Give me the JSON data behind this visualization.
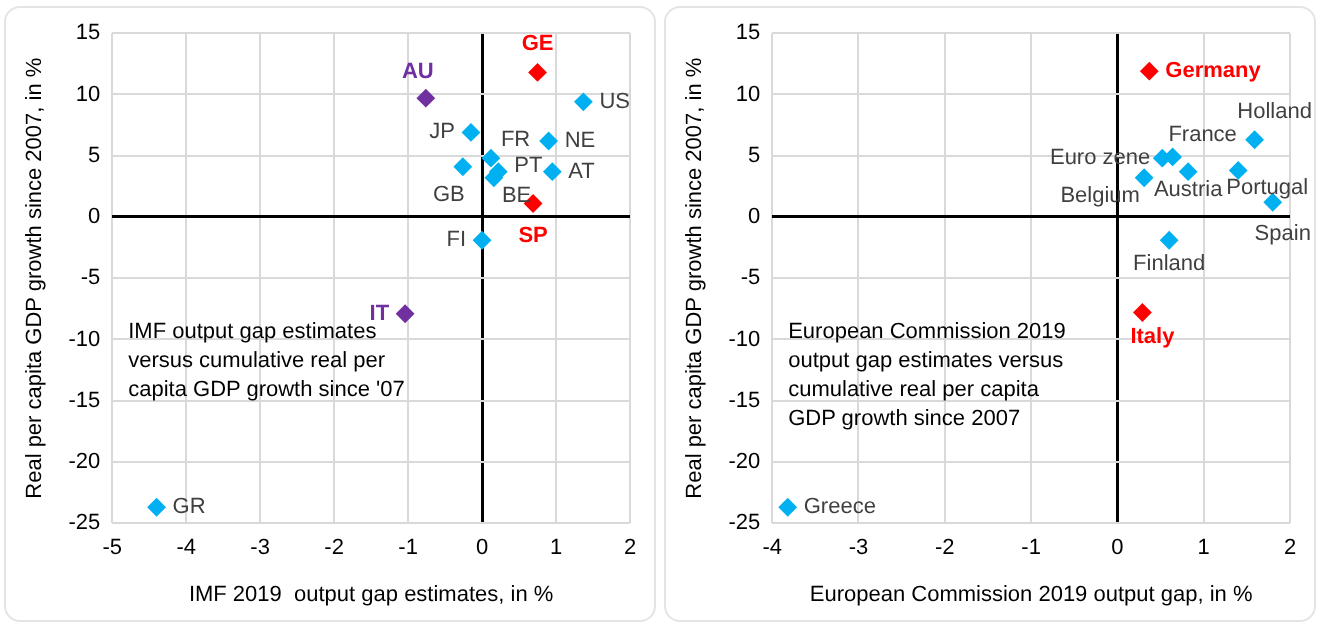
{
  "chart_data": [
    {
      "type": "scatter",
      "xlabel": "IMF 2019  output gap estimates, in %",
      "ylabel": "Real per capita GDP growth since 2007, in %",
      "xlim": [
        -5,
        2
      ],
      "ylim": [
        -25,
        15
      ],
      "xticks": [
        -5,
        -4,
        -3,
        -2,
        -1,
        0,
        1,
        2
      ],
      "yticks": [
        -25,
        -20,
        -15,
        -10,
        -5,
        0,
        5,
        10,
        15
      ],
      "grid": true,
      "marker": "diamond",
      "annotations": [
        "IMF output gap estimates versus cumulative real per capita GDP growth since '07"
      ],
      "series": [
        {
          "name": "AU",
          "color": "#7030a0",
          "x": [
            -0.76
          ],
          "values": [
            9.7
          ]
        },
        {
          "name": "GE",
          "color": "#ff0000",
          "x": [
            0.75
          ],
          "values": [
            11.8
          ]
        },
        {
          "name": "US",
          "color": "#00b0f0",
          "x": [
            1.37
          ],
          "values": [
            9.4
          ]
        },
        {
          "name": "JP",
          "color": "#00b0f0",
          "x": [
            -0.15
          ],
          "values": [
            6.9
          ]
        },
        {
          "name": "FR",
          "color": "#00b0f0",
          "x": [
            0.12
          ],
          "values": [
            4.8
          ]
        },
        {
          "name": "NE",
          "color": "#00b0f0",
          "x": [
            0.9
          ],
          "values": [
            6.2
          ]
        },
        {
          "name": "GB",
          "color": "#00b0f0",
          "x": [
            -0.26
          ],
          "values": [
            4.1
          ]
        },
        {
          "name": "PT",
          "color": "#00b0f0",
          "x": [
            0.22
          ],
          "values": [
            3.7
          ]
        },
        {
          "name": "BE",
          "color": "#00b0f0",
          "x": [
            0.16
          ],
          "values": [
            3.2
          ]
        },
        {
          "name": "AT",
          "color": "#00b0f0",
          "x": [
            0.95
          ],
          "values": [
            3.7
          ]
        },
        {
          "name": "FI",
          "color": "#00b0f0",
          "x": [
            0.0
          ],
          "values": [
            -1.9
          ]
        },
        {
          "name": "SP",
          "color": "#ff0000",
          "x": [
            0.69
          ],
          "values": [
            1.1
          ]
        },
        {
          "name": "IT",
          "color": "#7030a0",
          "x": [
            -1.04
          ],
          "values": [
            -7.9
          ]
        },
        {
          "name": "GR",
          "color": "#00b0f0",
          "x": [
            -4.4
          ],
          "values": [
            -23.7
          ]
        }
      ]
    },
    {
      "type": "scatter",
      "xlabel": "European Commission 2019 output gap, in %",
      "ylabel": "Real per capita GDP growth since 2007, in %",
      "xlim": [
        -4,
        2
      ],
      "ylim": [
        -25,
        15
      ],
      "xticks": [
        -4,
        -3,
        -2,
        -1,
        0,
        1,
        2
      ],
      "yticks": [
        -25,
        -20,
        -15,
        -10,
        -5,
        0,
        5,
        10,
        15
      ],
      "grid": true,
      "marker": "diamond",
      "annotations": [
        "European Commission 2019 output gap estimates versus cumulative real per capita GDP growth since 2007"
      ],
      "series": [
        {
          "name": "Germany",
          "color": "#ff0000",
          "x": [
            0.37
          ],
          "values": [
            11.9
          ]
        },
        {
          "name": "Holland",
          "color": "#00b0f0",
          "x": [
            1.59
          ],
          "values": [
            6.3
          ]
        },
        {
          "name": "France",
          "color": "#00b0f0",
          "x": [
            0.64
          ],
          "values": [
            4.9
          ]
        },
        {
          "name": "Euro zene",
          "color": "#00b0f0",
          "x": [
            0.52
          ],
          "values": [
            4.8
          ]
        },
        {
          "name": "Belgium",
          "color": "#00b0f0",
          "x": [
            0.31
          ],
          "values": [
            3.2
          ]
        },
        {
          "name": "Austria",
          "color": "#00b0f0",
          "x": [
            0.82
          ],
          "values": [
            3.7
          ]
        },
        {
          "name": "Portugal",
          "color": "#00b0f0",
          "x": [
            1.4
          ],
          "values": [
            3.8
          ]
        },
        {
          "name": "Spain",
          "color": "#00b0f0",
          "x": [
            1.8
          ],
          "values": [
            1.2
          ]
        },
        {
          "name": "Finland",
          "color": "#00b0f0",
          "x": [
            0.6
          ],
          "values": [
            -1.9
          ]
        },
        {
          "name": "Italy",
          "color": "#ff0000",
          "x": [
            0.29
          ],
          "values": [
            -7.8
          ]
        },
        {
          "name": "Greece",
          "color": "#00b0f0",
          "x": [
            -3.82
          ],
          "values": [
            -23.7
          ]
        }
      ]
    }
  ]
}
